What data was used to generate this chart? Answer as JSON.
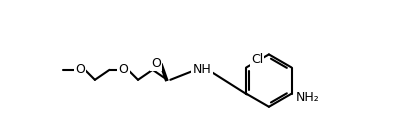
{
  "bg": "#ffffff",
  "line_color": "#000000",
  "line_width": 1.5,
  "font_size": 9,
  "atoms": {
    "CH3O_label": "O",
    "O1_label": "O",
    "O2_label": "O",
    "C_amide_O": "O",
    "NH_label": "NH",
    "Cl_label": "Cl",
    "NH2_label": "NH₂"
  }
}
